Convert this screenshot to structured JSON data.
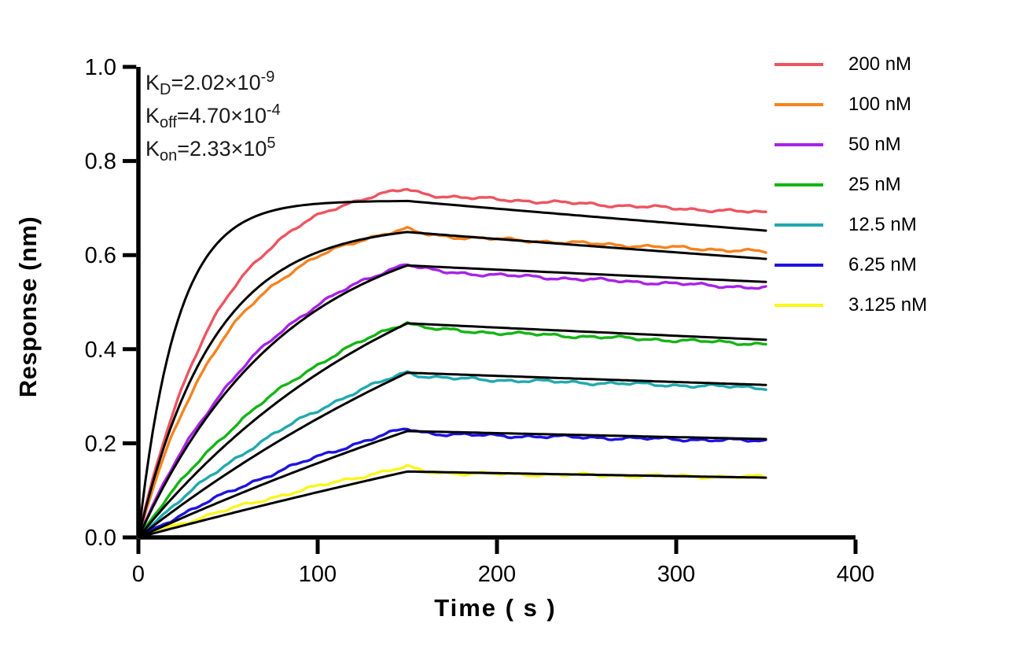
{
  "chart_data": {
    "type": "line",
    "title": "",
    "xlabel": "Time ( s )",
    "ylabel": "Response (nm)",
    "xlim": [
      0,
      400
    ],
    "ylim": [
      0.0,
      1.0
    ],
    "x_ticks": [
      0,
      100,
      200,
      300,
      400
    ],
    "y_ticks": [
      {
        "v": 0.0,
        "label": "0.0"
      },
      {
        "v": 0.2,
        "label": "0.2"
      },
      {
        "v": 0.4,
        "label": "0.4"
      },
      {
        "v": 0.6,
        "label": "0.6"
      },
      {
        "v": 0.8,
        "label": "0.8"
      },
      {
        "v": 1.0,
        "label": "1.0"
      }
    ],
    "grid": false,
    "legend_position": "top-right",
    "association_end_s": 150,
    "dissociation_end_s": 350,
    "axis_color": "#000000",
    "fit_color": "#000000",
    "background": "#ffffff",
    "series": [
      {
        "label": "200 nM",
        "color": "#EC5560",
        "peak": 0.74,
        "k_assoc": 0.022,
        "post_drop": 0.012,
        "end": 0.69,
        "samples": [
          [
            0,
            0.0
          ],
          [
            50,
            0.513
          ],
          [
            100,
            0.683
          ],
          [
            150,
            0.74
          ],
          [
            250,
            0.709
          ],
          [
            350,
            0.69
          ]
        ],
        "fit": {
          "peak": 0.715,
          "k_assoc": 0.047,
          "end": 0.652
        }
      },
      {
        "label": "100 nM",
        "color": "#F5831F",
        "peak": 0.655,
        "k_assoc": 0.02,
        "post_drop": 0.012,
        "end": 0.607,
        "samples": [
          [
            0,
            0.0
          ],
          [
            50,
            0.436
          ],
          [
            100,
            0.596
          ],
          [
            150,
            0.655
          ],
          [
            250,
            0.625
          ],
          [
            350,
            0.607
          ]
        ],
        "fit": {
          "peak": 0.649,
          "k_assoc": 0.0238,
          "end": 0.592
        }
      },
      {
        "label": "50 nM",
        "color": "#A823E6",
        "peak": 0.582,
        "k_assoc": 0.013,
        "post_drop": 0.015,
        "end": 0.53,
        "samples": [
          [
            0,
            0.0
          ],
          [
            50,
            0.324
          ],
          [
            100,
            0.494
          ],
          [
            150,
            0.582
          ],
          [
            250,
            0.548
          ],
          [
            350,
            0.53
          ]
        ],
        "fit": {
          "peak": 0.578,
          "k_assoc": 0.0121,
          "end": 0.543
        }
      },
      {
        "label": "25 nM",
        "color": "#15B415",
        "peak": 0.458,
        "k_assoc": 0.009,
        "post_drop": 0.015,
        "end": 0.411,
        "samples": [
          [
            0,
            0.0
          ],
          [
            50,
            0.224
          ],
          [
            100,
            0.367
          ],
          [
            150,
            0.458
          ],
          [
            250,
            0.427
          ],
          [
            350,
            0.411
          ]
        ],
        "fit": {
          "peak": 0.455,
          "k_assoc": 0.0063,
          "end": 0.42
        }
      },
      {
        "label": "12.5 nM",
        "color": "#22A9AE",
        "peak": 0.352,
        "k_assoc": 0.0065,
        "post_drop": 0.012,
        "end": 0.318,
        "samples": [
          [
            0,
            0.0
          ],
          [
            50,
            0.157
          ],
          [
            100,
            0.27
          ],
          [
            150,
            0.352
          ],
          [
            250,
            0.329
          ],
          [
            350,
            0.318
          ]
        ],
        "fit": {
          "peak": 0.35,
          "k_assoc": 0.0034,
          "end": 0.324
        }
      },
      {
        "label": "6.25 nM",
        "color": "#1D13E0",
        "peak": 0.232,
        "k_assoc": 0.0045,
        "post_drop": 0.012,
        "end": 0.205,
        "samples": [
          [
            0,
            0.0
          ],
          [
            50,
            0.095
          ],
          [
            100,
            0.171
          ],
          [
            150,
            0.232
          ],
          [
            250,
            0.212
          ],
          [
            350,
            0.205
          ]
        ],
        "fit": {
          "peak": 0.226,
          "k_assoc": 0.0019,
          "end": 0.209
        }
      },
      {
        "label": "3.125 nM",
        "color": "#FAF51C",
        "peak": 0.15,
        "k_assoc": 0.0035,
        "post_drop": 0.013,
        "end": 0.128,
        "samples": [
          [
            0,
            0.0
          ],
          [
            50,
            0.059
          ],
          [
            100,
            0.108
          ],
          [
            150,
            0.15
          ],
          [
            250,
            0.132
          ],
          [
            350,
            0.128
          ]
        ],
        "fit": {
          "peak": 0.14,
          "k_assoc": 0.0012,
          "end": 0.127
        }
      }
    ]
  },
  "annotation": {
    "lines": [
      {
        "symbol": "K",
        "sub": "D",
        "eq": "=2.02×10",
        "sup": "-9"
      },
      {
        "symbol": "K",
        "sub": "off",
        "eq": "=4.70×10",
        "sup": "-4"
      },
      {
        "symbol": "K",
        "sub": "on",
        "eq": "=2.33×10",
        "sup": "5"
      }
    ]
  }
}
